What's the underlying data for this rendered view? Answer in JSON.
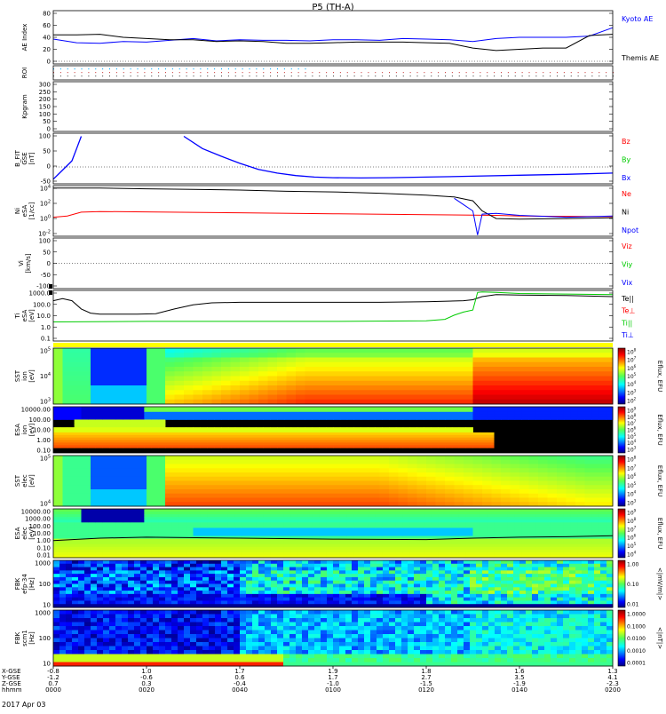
{
  "title": "P5 (TH-A)",
  "date_label": "2017 Apr 03",
  "chart_data": {
    "type": "line",
    "time_axis": {
      "row_labels": [
        "X-GSE",
        "Y-GSE",
        "Z-GSE",
        "hhmm"
      ],
      "ticks": [
        {
          "x": "-0.8",
          "y": "-1.2",
          "z": "0.7",
          "t": "0000"
        },
        {
          "x": "1.0",
          "y": "-0.6",
          "z": "0.3",
          "t": "0020"
        },
        {
          "x": "1.7",
          "y": "0.6",
          "z": "-0.4",
          "t": "0040"
        },
        {
          "x": "1.9",
          "y": "1.7",
          "z": "-1.0",
          "t": "0100"
        },
        {
          "x": "1.8",
          "y": "2.7",
          "z": "-1.5",
          "t": "0120"
        },
        {
          "x": "1.6",
          "y": "3.5",
          "z": "-1.9",
          "t": "0140"
        },
        {
          "x": "1.3",
          "y": "4.1",
          "z": "-2.3",
          "t": "0200"
        }
      ]
    },
    "panels": [
      {
        "id": "ae",
        "ylabel": "AE Index",
        "yticks": [
          "80",
          "60",
          "40",
          "20",
          "0"
        ],
        "ylim": [
          0,
          80
        ],
        "legend": [
          {
            "label": "Kyoto AE",
            "color": "#0000ff"
          },
          {
            "label": "Themis AE",
            "color": "#000000"
          }
        ],
        "series": [
          {
            "name": "Kyoto AE",
            "color": "#0000ff",
            "t": [
              0,
              5,
              10,
              15,
              20,
              25,
              30,
              35,
              40,
              45,
              50,
              55,
              60,
              65,
              70,
              75,
              80,
              85,
              90,
              95,
              100,
              105,
              110,
              115,
              120
            ],
            "values": [
              37,
              31,
              30,
              33,
              32,
              35,
              38,
              34,
              36,
              35,
              35,
              34,
              36,
              36,
              35,
              38,
              37,
              36,
              33,
              38,
              40,
              40,
              40,
              42,
              56
            ]
          },
          {
            "name": "Themis AE",
            "color": "#000000",
            "t": [
              0,
              5,
              10,
              15,
              20,
              25,
              30,
              35,
              40,
              45,
              50,
              55,
              60,
              65,
              70,
              75,
              80,
              85,
              90,
              95,
              100,
              105,
              110,
              115,
              120
            ],
            "values": [
              44,
              44,
              45,
              40,
              38,
              36,
              36,
              33,
              34,
              33,
              30,
              30,
              31,
              32,
              32,
              32,
              31,
              30,
              22,
              18,
              20,
              22,
              22,
              43,
              45
            ]
          }
        ]
      },
      {
        "id": "roi",
        "ylabel": "ROI"
      },
      {
        "id": "kp",
        "ylabel": "Kpgram",
        "yticks": [
          "300",
          "250",
          "200",
          "150",
          "100",
          "50",
          "0"
        ]
      },
      {
        "id": "bfield",
        "ylabel": "B_FIT",
        "ylabel2": "GSE",
        "units": "[nT]",
        "yticks": [
          "100",
          "50",
          "0",
          "-50"
        ],
        "ylim": [
          -55,
          110
        ],
        "legend": [
          {
            "label": "Bz",
            "color": "#ff0000"
          },
          {
            "label": "By",
            "color": "#00cc00"
          },
          {
            "label": "Bx",
            "color": "#0000ff"
          }
        ],
        "series": [
          {
            "name": "Bx",
            "color": "#0000ff",
            "t": [
              0,
              2,
              4,
              5,
              6
            ],
            "values": [
              -40,
              -10,
              20,
              60,
              100
            ],
            "t2": [
              28,
              32,
              36,
              40,
              44,
              48,
              52,
              56,
              60,
              66,
              72,
              80,
              90,
              100,
              110,
              120
            ],
            "values2": [
              100,
              60,
              35,
              12,
              -8,
              -20,
              -28,
              -33,
              -35,
              -36,
              -35,
              -33,
              -30,
              -27,
              -24,
              -20
            ]
          }
        ]
      },
      {
        "id": "density",
        "ylabel": "Ni",
        "ylabel2": "eSA",
        "units": "[1/cc]",
        "yticks": [
          "10^4",
          "10^2",
          "10^0",
          "10^-2"
        ],
        "ylim_log": [
          -3,
          5
        ],
        "legend": [
          {
            "label": "Ne",
            "color": "#ff0000"
          },
          {
            "label": "Ni",
            "color": "#000000"
          },
          {
            "label": "Npot",
            "color": "#0000ff"
          }
        ],
        "series": [
          {
            "name": "Ne",
            "color": "#ff0000",
            "t": [
              0,
              3,
              6,
              10,
              20,
              40,
              60,
              80,
              95,
              100,
              110,
              120
            ],
            "values_log": [
              0.0,
              0.2,
              0.8,
              0.9,
              0.85,
              0.7,
              0.55,
              0.4,
              0.3,
              0.2,
              0.15,
              0.1
            ]
          },
          {
            "name": "Ni",
            "color": "#000000",
            "t": [
              0,
              10,
              20,
              30,
              40,
              50,
              60,
              70,
              80,
              86,
              90,
              92,
              95,
              100,
              110,
              120
            ],
            "values_log": [
              4.6,
              4.6,
              4.5,
              4.4,
              4.3,
              4.1,
              4.0,
              3.8,
              3.5,
              3.2,
              2.6,
              1.0,
              -0.2,
              -0.3,
              -0.2,
              -0.1
            ]
          },
          {
            "name": "Npot",
            "color": "#0000ff",
            "t": [
              86,
              88,
              90,
              91,
              92,
              95,
              100,
              110,
              120
            ],
            "values_log": [
              3.0,
              2.0,
              1.0,
              -2.8,
              0.5,
              0.6,
              0.3,
              0.0,
              0.2
            ]
          }
        ]
      },
      {
        "id": "velocity",
        "ylabel": "Vi",
        "units": "[km/s]",
        "yticks": [
          "100",
          "50",
          "0",
          "-50",
          "-100"
        ],
        "ylim": [
          -120,
          120
        ],
        "legend": [
          {
            "label": "Viz",
            "color": "#ff0000"
          },
          {
            "label": "Viy",
            "color": "#00cc00"
          },
          {
            "label": "Vix",
            "color": "#0000ff"
          }
        ]
      },
      {
        "id": "temp",
        "ylabel": "Ti",
        "ylabel2": "eSA",
        "units": "[eV]",
        "yticks": [
          "1000.0",
          "100.0",
          "10.0",
          "1.0",
          "0.1"
        ],
        "ylim_log": [
          -1.3,
          3.6
        ],
        "legend": [
          {
            "label": "Te||",
            "color": "#000000"
          },
          {
            "label": "Te⊥",
            "color": "#ff0000"
          },
          {
            "label": "Ti||",
            "color": "#00cc00"
          },
          {
            "label": "Ti⊥",
            "color": "#0000ff"
          }
        ],
        "series": [
          {
            "name": "Te||",
            "color": "#000000",
            "t": [
              0,
              2,
              4,
              6,
              8,
              10,
              14,
              18,
              22,
              26,
              30,
              34,
              40,
              50,
              60,
              70,
              80,
              88,
              90,
              92,
              95,
              100,
              110,
              120
            ],
            "values_log": [
              2.6,
              2.8,
              2.6,
              1.8,
              1.4,
              1.3,
              1.3,
              1.3,
              1.35,
              1.8,
              2.2,
              2.4,
              2.45,
              2.45,
              2.45,
              2.45,
              2.5,
              2.6,
              2.7,
              3.0,
              3.2,
              3.15,
              3.1,
              3.0
            ]
          },
          {
            "name": "Ti||",
            "color": "#00cc00",
            "t": [
              0,
              20,
              40,
              60,
              80,
              84,
              86,
              88,
              90,
              91,
              92,
              95,
              100,
              110,
              120
            ],
            "values_log": [
              0.55,
              0.6,
              0.6,
              0.6,
              0.65,
              0.8,
              1.2,
              1.5,
              1.7,
              3.4,
              3.45,
              3.4,
              3.3,
              3.25,
              3.2
            ]
          }
        ]
      },
      {
        "id": "sst_ion",
        "ylabel": "SST",
        "ylabel2": "ion",
        "units": "[eV]",
        "yticks": [
          "10^5",
          "10^4",
          "10^3"
        ],
        "colorbar": {
          "label": "Eflux, EFU",
          "ticks": [
            "10^8",
            "10^7",
            "10^6",
            "10^5",
            "10^4",
            "10^3",
            "10^2"
          ]
        }
      },
      {
        "id": "esa_ion",
        "ylabel": "ESA",
        "ylabel2": "ion",
        "units": "[eV]",
        "yticks": [
          "10000.00",
          "100.00",
          "10.00",
          "1.00",
          "0.10"
        ],
        "colorbar": {
          "label": "Eflux, EFU",
          "ticks": [
            "10^9",
            "10^8",
            "10^7",
            "10^6",
            "10^5",
            "10^4",
            "10^3"
          ]
        }
      },
      {
        "id": "sst_elec",
        "ylabel": "SST",
        "ylabel2": "elec",
        "units": "[eV]",
        "yticks": [
          "10^5",
          "10^4"
        ],
        "colorbar": {
          "label": "Eflux, EFU",
          "ticks": [
            "10^8",
            "10^7",
            "10^6",
            "10^5",
            "10^4",
            "10^3"
          ]
        }
      },
      {
        "id": "esa_elec",
        "ylabel": "ESA",
        "ylabel2": "elec",
        "units": "[eV]",
        "yticks": [
          "10000.00",
          "1000.00",
          "100.00",
          "10.00",
          "1.00",
          "0.10",
          "0.01"
        ],
        "colorbar": {
          "label": "Eflux, EFU",
          "ticks": [
            "10^9",
            "10^8",
            "10^7",
            "10^6",
            "10^5",
            "10^4"
          ]
        }
      },
      {
        "id": "fbk_e",
        "ylabel": "FBK",
        "ylabel2": "efp-34",
        "units": "[Hz]",
        "yticks": [
          "1000",
          "100",
          "10"
        ],
        "colorbar": {
          "label": "<|mV/m|>",
          "ticks": [
            "1.00",
            "0.10",
            "0.01"
          ]
        }
      },
      {
        "id": "fbk_b",
        "ylabel": "FBK",
        "ylabel2": "scm1",
        "units": "[Hz]",
        "yticks": [
          "1000",
          "100",
          "10"
        ],
        "colorbar": {
          "label": "<|nT|>",
          "ticks": [
            "1.0000",
            "0.1000",
            "0.0100",
            "0.0010",
            "0.0001"
          ]
        }
      }
    ]
  }
}
